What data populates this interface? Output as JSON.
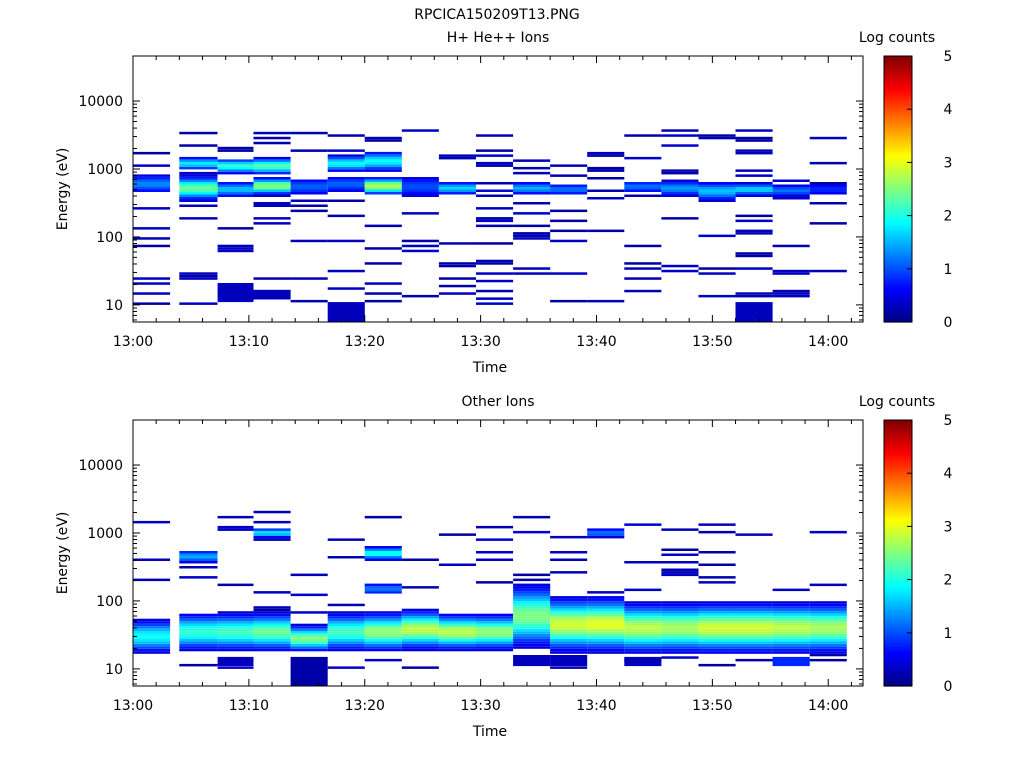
{
  "figure_title": "RPCICA150209T13.PNG",
  "colorbar": {
    "label": "Log counts",
    "ticks": [
      "0",
      "1",
      "2",
      "3",
      "4",
      "5"
    ],
    "range": [
      0,
      5
    ],
    "colormap": "jet"
  },
  "chart_data": [
    {
      "type": "heatmap",
      "title": "H+ He++ Ions",
      "xlabel": "Time",
      "ylabel": "Energy (eV)",
      "x_tick_labels": [
        "13:00",
        "13:10",
        "13:20",
        "13:30",
        "13:40",
        "13:50",
        "14:00"
      ],
      "x_ticks_minutes": [
        0,
        10,
        20,
        30,
        40,
        50,
        60
      ],
      "xlim_minutes": [
        0,
        63
      ],
      "y_scale": "log",
      "y_tick_labels": [
        "10",
        "100",
        "1000",
        "10000"
      ],
      "y_ticks": [
        10,
        100,
        1000,
        10000
      ],
      "ylim": [
        5.6,
        46000
      ],
      "time_bins_minutes": [
        [
          0,
          3.2
        ],
        [
          4,
          7.3
        ],
        [
          7.3,
          10.4
        ],
        [
          10.4,
          13.6
        ],
        [
          13.6,
          16.8
        ],
        [
          16.8,
          20
        ],
        [
          20,
          23.2
        ],
        [
          23.2,
          26.4
        ],
        [
          26.4,
          29.6
        ],
        [
          29.6,
          32.8
        ],
        [
          32.8,
          36
        ],
        [
          36,
          39.2
        ],
        [
          39.2,
          42.4
        ],
        [
          42.4,
          45.6
        ],
        [
          45.6,
          48.8
        ],
        [
          48.8,
          52
        ],
        [
          52,
          55.2
        ],
        [
          55.2,
          58.4
        ],
        [
          58.4,
          61.6
        ]
      ],
      "energy_min_eV": 10,
      "energy_max_eV": 35000,
      "energy_bins": 96,
      "max_energy_eV": 3800,
      "noise_levels": [
        0.18,
        0.14,
        0.16,
        0.18,
        0.15,
        0.15,
        0.18,
        0.13,
        0.13,
        0.14,
        0.16,
        0.12,
        0.15,
        0.14,
        0.15,
        0.17,
        0.17,
        0.14,
        0.14
      ],
      "peaks": [
        {
          "bin": 0,
          "e": 600,
          "v": 1.3,
          "w": 0.12
        },
        {
          "bin": 1,
          "e": 520,
          "v": 2.4,
          "w": 0.14
        },
        {
          "bin": 1,
          "e": 1200,
          "v": 1.8,
          "w": 0.08
        },
        {
          "bin": 2,
          "e": 500,
          "v": 1.6,
          "w": 0.1
        },
        {
          "bin": 2,
          "e": 1100,
          "v": 2.1,
          "w": 0.09
        },
        {
          "bin": 3,
          "e": 560,
          "v": 2.6,
          "w": 0.1
        },
        {
          "bin": 3,
          "e": 1100,
          "v": 2.3,
          "w": 0.1
        },
        {
          "bin": 4,
          "e": 550,
          "v": 1.1,
          "w": 0.12
        },
        {
          "bin": 5,
          "e": 600,
          "v": 1.1,
          "w": 0.12
        },
        {
          "bin": 5,
          "e": 1200,
          "v": 1.9,
          "w": 0.1
        },
        {
          "bin": 6,
          "e": 560,
          "v": 2.8,
          "w": 0.1
        },
        {
          "bin": 6,
          "e": 1300,
          "v": 1.9,
          "w": 0.12
        },
        {
          "bin": 7,
          "e": 550,
          "v": 1.0,
          "w": 0.15
        },
        {
          "bin": 8,
          "e": 520,
          "v": 1.7,
          "w": 0.08
        },
        {
          "bin": 10,
          "e": 520,
          "v": 1.5,
          "w": 0.08
        },
        {
          "bin": 11,
          "e": 500,
          "v": 1.2,
          "w": 0.08
        },
        {
          "bin": 13,
          "e": 550,
          "v": 1.2,
          "w": 0.08
        },
        {
          "bin": 14,
          "e": 520,
          "v": 1.4,
          "w": 0.1
        },
        {
          "bin": 15,
          "e": 470,
          "v": 1.6,
          "w": 0.12
        },
        {
          "bin": 16,
          "e": 500,
          "v": 1.7,
          "w": 0.08
        },
        {
          "bin": 17,
          "e": 480,
          "v": 1.2,
          "w": 0.08
        },
        {
          "bin": 18,
          "e": 500,
          "v": 0.8,
          "w": 0.1
        }
      ],
      "low_blocks": [
        {
          "bin": 2,
          "e0": 11,
          "e1": 21,
          "v": 0.3
        },
        {
          "bin": 3,
          "e0": 12,
          "e1": 16,
          "v": 0.3
        },
        {
          "bin": 5,
          "e0": 5.6,
          "e1": 11,
          "v": 0.3
        },
        {
          "bin": 16,
          "e0": 5.6,
          "e1": 11,
          "v": 0.3
        }
      ]
    },
    {
      "type": "heatmap",
      "title": "Other Ions",
      "xlabel": "Time",
      "ylabel": "Energy (eV)",
      "x_tick_labels": [
        "13:00",
        "13:10",
        "13:20",
        "13:30",
        "13:40",
        "13:50",
        "14:00"
      ],
      "x_ticks_minutes": [
        0,
        10,
        20,
        30,
        40,
        50,
        60
      ],
      "xlim_minutes": [
        0,
        63
      ],
      "y_scale": "log",
      "y_tick_labels": [
        "10",
        "100",
        "1000",
        "10000"
      ],
      "y_ticks": [
        10,
        100,
        1000,
        10000
      ],
      "ylim": [
        5.6,
        46000
      ],
      "time_bins_minutes": [
        [
          0,
          3.2
        ],
        [
          4,
          7.3
        ],
        [
          7.3,
          10.4
        ],
        [
          10.4,
          13.6
        ],
        [
          13.6,
          16.8
        ],
        [
          16.8,
          20
        ],
        [
          20,
          23.2
        ],
        [
          23.2,
          26.4
        ],
        [
          26.4,
          29.6
        ],
        [
          29.6,
          32.8
        ],
        [
          32.8,
          36
        ],
        [
          36,
          39.2
        ],
        [
          39.2,
          42.4
        ],
        [
          42.4,
          45.6
        ],
        [
          45.6,
          48.8
        ],
        [
          48.8,
          52
        ],
        [
          52,
          55.2
        ],
        [
          55.2,
          58.4
        ],
        [
          58.4,
          61.6
        ]
      ],
      "energy_min_eV": 10,
      "energy_max_eV": 35000,
      "energy_bins": 96,
      "max_energy_eV": 2100,
      "noise_levels": [
        0.1,
        0.1,
        0.1,
        0.1,
        0.1,
        0.1,
        0.1,
        0.09,
        0.09,
        0.09,
        0.1,
        0.09,
        0.09,
        0.09,
        0.09,
        0.09,
        0.09,
        0.09,
        0.09
      ],
      "peaks": [
        {
          "bin": 0,
          "e": 30,
          "v": 1.9,
          "w": 0.2
        },
        {
          "bin": 1,
          "e": 35,
          "v": 2.1,
          "w": 0.22
        },
        {
          "bin": 2,
          "e": 35,
          "v": 2.2,
          "w": 0.22
        },
        {
          "bin": 3,
          "e": 35,
          "v": 2.4,
          "w": 0.22
        },
        {
          "bin": 4,
          "e": 28,
          "v": 2.5,
          "w": 0.15
        },
        {
          "bin": 5,
          "e": 35,
          "v": 2.2,
          "w": 0.22
        },
        {
          "bin": 6,
          "e": 35,
          "v": 2.6,
          "w": 0.22
        },
        {
          "bin": 7,
          "e": 38,
          "v": 2.8,
          "w": 0.22
        },
        {
          "bin": 8,
          "e": 35,
          "v": 2.8,
          "w": 0.2
        },
        {
          "bin": 9,
          "e": 35,
          "v": 2.6,
          "w": 0.2
        },
        {
          "bin": 10,
          "e": 60,
          "v": 2.5,
          "w": 0.35
        },
        {
          "bin": 11,
          "e": 45,
          "v": 2.9,
          "w": 0.3
        },
        {
          "bin": 12,
          "e": 45,
          "v": 3.0,
          "w": 0.3
        },
        {
          "bin": 13,
          "e": 40,
          "v": 2.8,
          "w": 0.28
        },
        {
          "bin": 14,
          "e": 40,
          "v": 2.7,
          "w": 0.28
        },
        {
          "bin": 15,
          "e": 40,
          "v": 2.9,
          "w": 0.28
        },
        {
          "bin": 16,
          "e": 40,
          "v": 2.9,
          "w": 0.28
        },
        {
          "bin": 17,
          "e": 40,
          "v": 2.8,
          "w": 0.28
        },
        {
          "bin": 18,
          "e": 40,
          "v": 2.7,
          "w": 0.28
        },
        {
          "bin": 1,
          "e": 450,
          "v": 1.5,
          "w": 0.08
        },
        {
          "bin": 3,
          "e": 1000,
          "v": 1.8,
          "w": 0.06
        },
        {
          "bin": 6,
          "e": 500,
          "v": 2.0,
          "w": 0.08
        },
        {
          "bin": 6,
          "e": 150,
          "v": 1.2,
          "w": 0.08
        },
        {
          "bin": 12,
          "e": 1000,
          "v": 1.2,
          "w": 0.06
        }
      ],
      "low_blocks": [
        {
          "bin": 2,
          "e0": 11,
          "e1": 15,
          "v": 0.3
        },
        {
          "bin": 4,
          "e0": 5.6,
          "e1": 15,
          "v": 0.2
        },
        {
          "bin": 10,
          "e0": 11,
          "e1": 16,
          "v": 0.3
        },
        {
          "bin": 11,
          "e0": 11,
          "e1": 16,
          "v": 0.3
        },
        {
          "bin": 13,
          "e0": 11,
          "e1": 15,
          "v": 0.3
        },
        {
          "bin": 17,
          "e0": 11,
          "e1": 15,
          "v": 0.8
        }
      ]
    }
  ]
}
